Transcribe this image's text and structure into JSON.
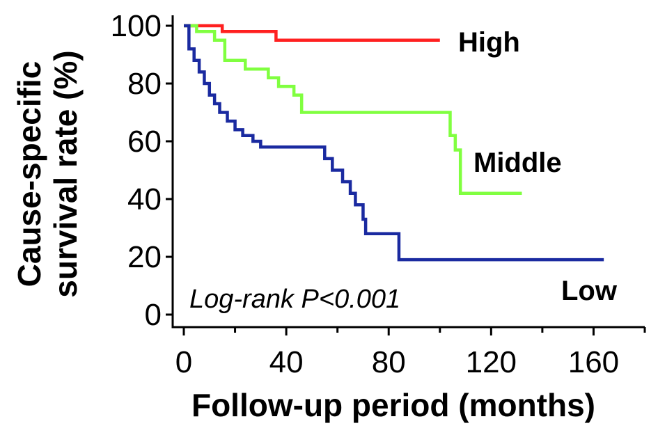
{
  "chart_data": {
    "type": "line",
    "step": true,
    "xlabel": "Follow-up period (months)",
    "ylabel": [
      "Cause-specific",
      "survival rate (%)"
    ],
    "xlim": [
      0,
      180
    ],
    "ylim": [
      0,
      100
    ],
    "xticks": [
      0,
      40,
      80,
      120,
      160
    ],
    "yticks": [
      0,
      20,
      40,
      60,
      80,
      100
    ],
    "annotation": "Log-rank P<0.001",
    "series": [
      {
        "name": "High",
        "color": "#ff2020",
        "x": [
          0,
          15,
          36,
          100
        ],
        "y": [
          100,
          98,
          95,
          95
        ]
      },
      {
        "name": "Middle",
        "color": "#80ff40",
        "x": [
          0,
          5,
          12,
          16,
          24,
          33,
          37,
          43,
          46,
          104,
          106,
          108,
          132
        ],
        "y": [
          100,
          98,
          95,
          88,
          85,
          82,
          79,
          76,
          70,
          62,
          57,
          42,
          42
        ]
      },
      {
        "name": "Low",
        "color": "#1a2aa0",
        "x": [
          0,
          2,
          4,
          6,
          8,
          10,
          12,
          14,
          17,
          20,
          23,
          27,
          30,
          36,
          55,
          58,
          62,
          65,
          67,
          70,
          71,
          84,
          164
        ],
        "y": [
          100,
          92,
          88,
          84,
          80,
          76,
          73,
          70,
          67,
          64,
          62,
          60,
          58,
          58,
          54,
          50,
          46,
          42,
          38,
          33,
          28,
          19,
          19
        ]
      }
    ]
  }
}
